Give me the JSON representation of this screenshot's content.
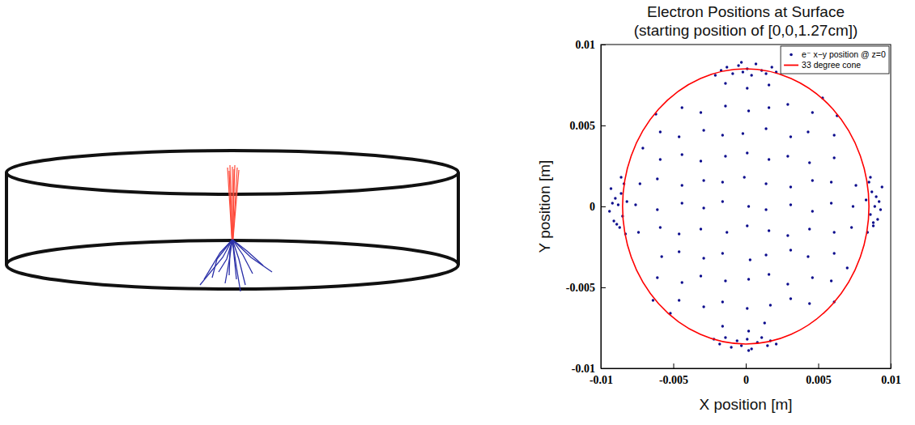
{
  "chart_data": {
    "type": "scatter",
    "title": "Electron Positions at Surface",
    "subtitle": "(starting position of [0,0,1.27cm])",
    "x_label": "X position [m]",
    "y_label": "Y position [m]",
    "xlim": [
      -0.01,
      0.01
    ],
    "ylim": [
      -0.01,
      0.01
    ],
    "xticks": [
      -0.01,
      -0.005,
      0,
      0.005,
      0.01
    ],
    "yticks": [
      -0.01,
      -0.005,
      0,
      0.005,
      0.01
    ],
    "grid": false,
    "legend": "upper right",
    "series": [
      {
        "name": "e⁻ x−y position @ z=0",
        "type": "scatter",
        "marker": "dot",
        "color": "#0a0a8c",
        "x": [
          -0.0016,
          0.0002,
          0.0013,
          -0.0046,
          -0.0029,
          -0.0016,
          0.0001,
          0.0017,
          0.0031,
          0.0044,
          -0.0061,
          -0.0044,
          -0.0031,
          -0.0014,
          0.0002,
          0.0016,
          0.0029,
          0.0046,
          0.0059,
          -0.0058,
          -0.0046,
          -0.0029,
          -0.0016,
          0.0003,
          0.0014,
          0.0031,
          0.0043,
          0.0061,
          -0.0074,
          -0.0059,
          -0.0046,
          -0.0031,
          -0.0013,
          0.0001,
          0.0016,
          0.0029,
          0.0044,
          0.0061,
          0.0073,
          -0.0076,
          -0.0061,
          -0.0044,
          -0.0029,
          -0.0016,
          0.0002,
          0.0014,
          0.0031,
          0.0046,
          0.0059,
          0.0074,
          -0.0073,
          -0.0061,
          -0.0044,
          -0.0029,
          -0.0016,
          -0.0001,
          0.0014,
          0.0031,
          0.0046,
          0.0059,
          0.0076,
          -0.0059,
          -0.0044,
          -0.0031,
          -0.0014,
          0.0001,
          0.0016,
          0.0029,
          0.0044,
          0.0061,
          -0.0059,
          -0.0046,
          -0.0029,
          -0.0016,
          -0.0002,
          0.0014,
          0.0031,
          0.0043,
          0.0061,
          -0.0044,
          -0.0031,
          -0.0014,
          0.0002,
          0.0016,
          0.0029,
          0.0046,
          -0.0014,
          0.0001,
          0.0016,
          -0.0021,
          -0.0017,
          -0.0013,
          -0.0009,
          -0.0005,
          -0.0002,
          0.0001,
          0.0004,
          0.0007,
          0.0011,
          0.0014,
          0.0018,
          0.0021,
          -0.0003,
          -0.0022,
          -0.0018,
          -0.0014,
          -0.001,
          -0.0006,
          -0.0003,
          0.0001,
          0.0004,
          0.0008,
          0.0011,
          0.0015,
          0.0017,
          0.0021,
          0.0002,
          -0.0083,
          -0.0087,
          -0.0091,
          -0.0085,
          -0.0094,
          -0.0088,
          -0.0082,
          -0.009,
          -0.0086,
          -0.0093,
          -0.0084,
          -0.0089,
          -0.0092,
          -0.0086,
          0.0084,
          0.0088,
          0.0091,
          0.0086,
          0.0093,
          0.0089,
          0.0083,
          0.009,
          0.0087,
          0.0094,
          0.0085,
          0.0088,
          0.0092,
          0.0086,
          -0.0062,
          0.0063,
          -0.0064,
          0.0061,
          -0.0071,
          0.007,
          -0.0052,
          0.0053
        ],
        "values": [
          -0.0074,
          -0.0077,
          -0.0072,
          -0.0058,
          -0.0062,
          -0.0059,
          -0.0063,
          -0.0061,
          -0.0057,
          -0.006,
          -0.0044,
          -0.0047,
          -0.0043,
          -0.0046,
          -0.0045,
          -0.0042,
          -0.0048,
          -0.0044,
          -0.0046,
          -0.0031,
          -0.0028,
          -0.0032,
          -0.0029,
          -0.0033,
          -0.003,
          -0.0027,
          -0.0031,
          -0.0029,
          -0.0016,
          -0.0013,
          -0.0017,
          -0.0014,
          -0.0016,
          -0.0012,
          -0.0015,
          -0.0018,
          -0.0014,
          -0.0016,
          -0.0013,
          0.0001,
          -0.0002,
          0.0002,
          -0.0001,
          0.0003,
          0,
          -0.0002,
          0.0001,
          -0.0003,
          0.0002,
          0,
          0.0014,
          0.0017,
          0.0013,
          0.0016,
          0.0015,
          0.0018,
          0.0014,
          0.0012,
          0.0016,
          0.0015,
          0.0013,
          0.0029,
          0.0032,
          0.0028,
          0.0031,
          0.0033,
          0.0029,
          0.0031,
          0.0027,
          0.003,
          0.0046,
          0.0043,
          0.0047,
          0.0044,
          0.0045,
          0.0048,
          0.0043,
          0.0046,
          0.0044,
          0.0061,
          0.0058,
          0.0062,
          0.0059,
          0.0061,
          0.0063,
          0.0058,
          0.0076,
          0.0073,
          0.0075,
          0.0081,
          0.0084,
          0.0086,
          0.0082,
          0.0087,
          0.0083,
          0.0085,
          0.0081,
          0.0088,
          0.0084,
          0.0082,
          0.0086,
          0.0083,
          0.0089,
          -0.0082,
          -0.0085,
          -0.0081,
          -0.0087,
          -0.0083,
          -0.0086,
          -0.0082,
          -0.0088,
          -0.0084,
          -0.0081,
          -0.0086,
          -0.0083,
          -0.0085,
          -0.0089,
          -0.0017,
          -0.0013,
          -0.0009,
          -0.0006,
          -0.0003,
          0.0001,
          0.0003,
          0.0005,
          0.0008,
          0.0011,
          0.0014,
          -0.0011,
          0.0002,
          0.0018,
          -0.0016,
          -0.0012,
          -0.0008,
          -0.0005,
          -0.0002,
          0,
          0.0004,
          0.0006,
          0.0009,
          0.0012,
          0.0015,
          -0.001,
          0.0003,
          0.0018,
          0.0057,
          0.0056,
          -0.0058,
          -0.0059,
          0.0036,
          -0.0038,
          -0.0066,
          0.0067
        ]
      },
      {
        "name": "33 degree cone",
        "type": "circle",
        "line_style": "solid",
        "color": "#ff0000",
        "center": [
          0,
          0
        ],
        "radius": 0.0085
      }
    ]
  }
}
